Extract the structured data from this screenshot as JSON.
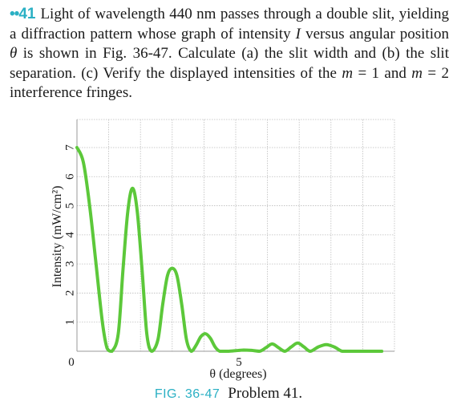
{
  "problem": {
    "dots": "••",
    "number": "41",
    "segments": [
      {
        "t": "Light of wavelength 440 nm passes through a double slit, yielding a diffraction pattern whose graph of intensity ",
        "i": false
      },
      {
        "t": "I",
        "i": true
      },
      {
        "t": " versus angular position ",
        "i": false
      },
      {
        "t": "θ",
        "i": true
      },
      {
        "t": " is shown in Fig. 36-47. Calculate (a) the slit width and (b) the slit separation. (c) Verify the displayed intensities of the ",
        "i": false
      },
      {
        "t": "m",
        "i": true
      },
      {
        "t": " = 1 and ",
        "i": false
      },
      {
        "t": "m",
        "i": true
      },
      {
        "t": " = 2 interference fringes.",
        "i": false
      }
    ]
  },
  "caption": {
    "figure_label": "FIG. 36-47",
    "text": "Problem 41."
  },
  "colors": {
    "curve": "#5cc83a",
    "accent": "#2bb0c4",
    "grid": "#bdbdbd"
  },
  "chart_data": {
    "type": "line",
    "title": "",
    "xlabel": "θ (degrees)",
    "ylabel": "Intensity (mW/cm²)",
    "xlim": [
      0,
      10
    ],
    "ylim": [
      0,
      7
    ],
    "x_ticks": [
      {
        "v": 0,
        "label": "0"
      },
      {
        "v": 5,
        "label": "5"
      }
    ],
    "y_ticks": [
      1,
      2,
      3,
      4,
      5,
      6,
      7
    ],
    "grid": true,
    "series": [
      {
        "points": [
          [
            0.0,
            7.0
          ],
          [
            0.2,
            6.5
          ],
          [
            0.4,
            5.0
          ],
          [
            0.6,
            3.0
          ],
          [
            0.8,
            1.0
          ],
          [
            0.95,
            0.1
          ],
          [
            1.1,
            0.0
          ],
          [
            1.3,
            0.6
          ],
          [
            1.45,
            2.8
          ],
          [
            1.6,
            4.8
          ],
          [
            1.75,
            5.6
          ],
          [
            1.9,
            4.8
          ],
          [
            2.05,
            2.8
          ],
          [
            2.2,
            0.6
          ],
          [
            2.35,
            0.0
          ],
          [
            2.55,
            0.4
          ],
          [
            2.7,
            1.6
          ],
          [
            2.85,
            2.6
          ],
          [
            3.0,
            2.85
          ],
          [
            3.15,
            2.6
          ],
          [
            3.3,
            1.6
          ],
          [
            3.45,
            0.4
          ],
          [
            3.6,
            0.0
          ],
          [
            3.75,
            0.2
          ],
          [
            3.9,
            0.5
          ],
          [
            4.05,
            0.6
          ],
          [
            4.2,
            0.45
          ],
          [
            4.35,
            0.15
          ],
          [
            4.5,
            0.0
          ],
          [
            4.75,
            0.0
          ],
          [
            5.0,
            0.02
          ],
          [
            5.25,
            0.04
          ],
          [
            5.5,
            0.03
          ],
          [
            5.75,
            0.0
          ],
          [
            5.95,
            0.12
          ],
          [
            6.15,
            0.25
          ],
          [
            6.35,
            0.12
          ],
          [
            6.55,
            0.0
          ],
          [
            6.75,
            0.15
          ],
          [
            6.95,
            0.28
          ],
          [
            7.15,
            0.15
          ],
          [
            7.35,
            0.0
          ],
          [
            7.6,
            0.15
          ],
          [
            7.85,
            0.23
          ],
          [
            8.1,
            0.15
          ],
          [
            8.35,
            0.0
          ],
          [
            8.6,
            0.0
          ],
          [
            9.0,
            0.0
          ],
          [
            9.6,
            0.0
          ]
        ]
      }
    ]
  }
}
